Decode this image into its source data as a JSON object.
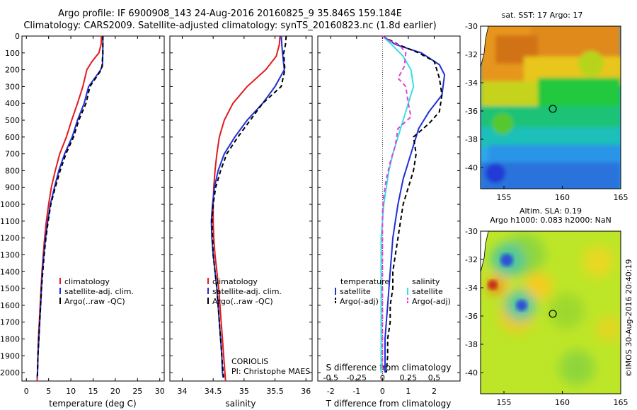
{
  "title": {
    "line1": "Argo profile: IF 6900908_143 24-Aug-2016 20160825_9 35.846S 159.184E",
    "line2": "Climatology: CARS2009. Satellite-adjusted climatology: synTS_20160823.nc (1.8d earlier)"
  },
  "colors": {
    "climatology": "#e41a1c",
    "satellite": "#1f2fd6",
    "argo": "#000000",
    "sat_salinity": "#34e0e6",
    "argo_salinity": "#e63fd8"
  },
  "credits": {
    "centre": "CORIOLIS",
    "pi": "PI: Christophe MAES",
    "imos": "©IMOS 30-Aug-2016 20:40:19"
  },
  "chart_data": [
    {
      "type": "line",
      "xlabel": "temperature (deg C)",
      "xlim": [
        -1,
        31
      ],
      "xticks": [
        0,
        5,
        10,
        15,
        20,
        25,
        30
      ],
      "ylim": [
        2050,
        0
      ],
      "yticks": [
        0,
        100,
        200,
        300,
        400,
        500,
        600,
        700,
        800,
        900,
        1000,
        1100,
        1200,
        1300,
        1400,
        1500,
        1600,
        1700,
        1800,
        1900,
        2000
      ],
      "legend": [
        "climatology",
        "satellite-adj. clim.",
        "Argo(..raw -QC)"
      ],
      "legend_position": "bottom-right",
      "series": [
        {
          "name": "climatology",
          "points": [
            [
              16.9,
              0
            ],
            [
              16.8,
              50
            ],
            [
              16.3,
              100
            ],
            [
              14.8,
              150
            ],
            [
              13.6,
              200
            ],
            [
              12.7,
              300
            ],
            [
              11.5,
              400
            ],
            [
              10.2,
              500
            ],
            [
              9.0,
              600
            ],
            [
              7.5,
              700
            ],
            [
              6.5,
              800
            ],
            [
              5.6,
              900
            ],
            [
              5.0,
              1000
            ],
            [
              4.5,
              1100
            ],
            [
              4.1,
              1200
            ],
            [
              3.8,
              1300
            ],
            [
              3.5,
              1400
            ],
            [
              3.3,
              1500
            ],
            [
              3.1,
              1600
            ],
            [
              2.9,
              1700
            ],
            [
              2.7,
              1800
            ],
            [
              2.6,
              1900
            ],
            [
              2.5,
              2000
            ],
            [
              2.4,
              2050
            ]
          ]
        },
        {
          "name": "satellite-adj. clim.",
          "points": [
            [
              17.2,
              0
            ],
            [
              17.2,
              100
            ],
            [
              17.1,
              180
            ],
            [
              16.5,
              210
            ],
            [
              14.0,
              300
            ],
            [
              13.0,
              400
            ],
            [
              11.5,
              500
            ],
            [
              10.3,
              600
            ],
            [
              8.6,
              700
            ],
            [
              7.3,
              800
            ],
            [
              6.3,
              900
            ],
            [
              5.4,
              1000
            ],
            [
              4.8,
              1100
            ],
            [
              4.3,
              1200
            ],
            [
              3.9,
              1300
            ],
            [
              3.6,
              1400
            ],
            [
              3.4,
              1500
            ],
            [
              3.2,
              1600
            ],
            [
              3.0,
              1700
            ],
            [
              2.8,
              1800
            ],
            [
              2.6,
              1900
            ],
            [
              2.5,
              2000
            ],
            [
              2.4,
              2030
            ]
          ]
        },
        {
          "name": "Argo(..raw -QC)",
          "points": [
            [
              17.2,
              0
            ],
            [
              17.2,
              100
            ],
            [
              17.0,
              180
            ],
            [
              16.6,
              210
            ],
            [
              14.3,
              300
            ],
            [
              13.4,
              400
            ],
            [
              11.8,
              500
            ],
            [
              10.6,
              600
            ],
            [
              8.9,
              700
            ],
            [
              7.6,
              800
            ],
            [
              6.5,
              900
            ],
            [
              5.5,
              1000
            ],
            [
              4.9,
              1100
            ],
            [
              4.4,
              1200
            ],
            [
              4.0,
              1300
            ],
            [
              3.7,
              1400
            ],
            [
              3.4,
              1500
            ],
            [
              3.2,
              1600
            ],
            [
              3.0,
              1700
            ],
            [
              2.8,
              1800
            ],
            [
              2.6,
              1900
            ],
            [
              2.5,
              2000
            ],
            [
              2.5,
              2030
            ]
          ]
        }
      ]
    },
    {
      "type": "line",
      "xlabel": "salinity",
      "xlim": [
        33.8,
        36.1
      ],
      "xticks": [
        34,
        34.5,
        35,
        35.5,
        36
      ],
      "ylim": [
        2050,
        0
      ],
      "legend": [
        "climatology",
        "satellite-adj. clim.",
        "Argo(..raw -QC)"
      ],
      "legend_position": "bottom-right",
      "series": [
        {
          "name": "climatology",
          "points": [
            [
              35.58,
              0
            ],
            [
              35.57,
              50
            ],
            [
              35.52,
              120
            ],
            [
              35.35,
              200
            ],
            [
              35.05,
              300
            ],
            [
              34.82,
              400
            ],
            [
              34.68,
              500
            ],
            [
              34.6,
              600
            ],
            [
              34.56,
              700
            ],
            [
              34.53,
              800
            ],
            [
              34.51,
              900
            ],
            [
              34.5,
              1000
            ],
            [
              34.5,
              1100
            ],
            [
              34.51,
              1200
            ],
            [
              34.53,
              1300
            ],
            [
              34.56,
              1400
            ],
            [
              34.59,
              1500
            ],
            [
              34.61,
              1600
            ],
            [
              34.63,
              1700
            ],
            [
              34.65,
              1800
            ],
            [
              34.67,
              1900
            ],
            [
              34.69,
              2000
            ],
            [
              34.7,
              2050
            ]
          ]
        },
        {
          "name": "satellite-adj. clim.",
          "points": [
            [
              35.6,
              0
            ],
            [
              35.62,
              100
            ],
            [
              35.65,
              200
            ],
            [
              35.5,
              300
            ],
            [
              35.3,
              400
            ],
            [
              35.05,
              500
            ],
            [
              34.85,
              600
            ],
            [
              34.68,
              700
            ],
            [
              34.58,
              800
            ],
            [
              34.52,
              900
            ],
            [
              34.49,
              1000
            ],
            [
              34.47,
              1100
            ],
            [
              34.48,
              1200
            ],
            [
              34.5,
              1300
            ],
            [
              34.53,
              1400
            ],
            [
              34.56,
              1500
            ],
            [
              34.58,
              1600
            ],
            [
              34.6,
              1700
            ],
            [
              34.62,
              1800
            ],
            [
              34.64,
              1900
            ],
            [
              34.65,
              2000
            ],
            [
              34.66,
              2030
            ]
          ]
        },
        {
          "name": "Argo(..raw -QC)",
          "points": [
            [
              35.68,
              0
            ],
            [
              35.67,
              50
            ],
            [
              35.64,
              100
            ],
            [
              35.66,
              200
            ],
            [
              35.6,
              300
            ],
            [
              35.3,
              400
            ],
            [
              35.1,
              500
            ],
            [
              34.9,
              600
            ],
            [
              34.72,
              700
            ],
            [
              34.62,
              800
            ],
            [
              34.54,
              900
            ],
            [
              34.5,
              1000
            ],
            [
              34.48,
              1100
            ],
            [
              34.49,
              1200
            ],
            [
              34.5,
              1300
            ],
            [
              34.53,
              1400
            ],
            [
              34.56,
              1500
            ],
            [
              34.58,
              1600
            ],
            [
              34.6,
              1700
            ],
            [
              34.62,
              1800
            ],
            [
              34.64,
              1900
            ],
            [
              34.66,
              2000
            ],
            [
              34.67,
              2030
            ]
          ]
        }
      ]
    },
    {
      "type": "line",
      "xlabel": "T difference from climatology",
      "x2label": "S difference from climatology",
      "xlim": [
        -2.5,
        3.0
      ],
      "xticks": [
        -2,
        -1,
        0,
        1,
        2
      ],
      "x2ticks": [
        "-0.5",
        "-0.25",
        "0",
        "0.25",
        "0.5"
      ],
      "ylim": [
        2050,
        0
      ],
      "legend_titles": [
        "temperature",
        "salinity"
      ],
      "legend": [
        "satellite",
        "Argo(-adj)",
        "satellite",
        "Argo(-adj)"
      ],
      "legend_position": "bottom",
      "series": [
        {
          "name": "temperature satellite",
          "points": [
            [
              0,
              0
            ],
            [
              0.5,
              50
            ],
            [
              1.5,
              100
            ],
            [
              2.2,
              170
            ],
            [
              2.4,
              230
            ],
            [
              2.3,
              350
            ],
            [
              1.8,
              450
            ],
            [
              1.4,
              550
            ],
            [
              1.2,
              650
            ],
            [
              1.0,
              750
            ],
            [
              0.8,
              850
            ],
            [
              0.6,
              1000
            ],
            [
              0.5,
              1100
            ],
            [
              0.4,
              1200
            ],
            [
              0.35,
              1300
            ],
            [
              0.3,
              1400
            ],
            [
              0.25,
              1500
            ],
            [
              0.2,
              1600
            ],
            [
              0.15,
              1700
            ],
            [
              0.1,
              1800
            ],
            [
              0.1,
              1900
            ],
            [
              0.1,
              2000
            ]
          ]
        },
        {
          "name": "temperature Argo(-adj)",
          "points": [
            [
              0,
              0
            ],
            [
              0.6,
              50
            ],
            [
              1.4,
              100
            ],
            [
              2.0,
              150
            ],
            [
              2.2,
              250
            ],
            [
              2.3,
              350
            ],
            [
              2.2,
              450
            ],
            [
              1.8,
              520
            ],
            [
              1.2,
              600
            ],
            [
              1.3,
              700
            ],
            [
              1.2,
              800
            ],
            [
              1.0,
              900
            ],
            [
              0.8,
              1000
            ],
            [
              0.7,
              1100
            ],
            [
              0.6,
              1200
            ],
            [
              0.5,
              1300
            ],
            [
              0.4,
              1400
            ],
            [
              0.4,
              1500
            ],
            [
              0.3,
              1600
            ],
            [
              0.3,
              1700
            ],
            [
              0.2,
              1800
            ],
            [
              0.2,
              1900
            ],
            [
              0.15,
              2000
            ]
          ]
        },
        {
          "name": "salinity satellite",
          "points": [
            [
              0,
              0
            ],
            [
              0.35,
              50
            ],
            [
              0.8,
              120
            ],
            [
              1.1,
              200
            ],
            [
              1.2,
              300
            ],
            [
              1.0,
              400
            ],
            [
              0.8,
              500
            ],
            [
              0.6,
              600
            ],
            [
              0.4,
              700
            ],
            [
              0.25,
              800
            ],
            [
              0.15,
              900
            ],
            [
              0.05,
              1000
            ],
            [
              0,
              1100
            ],
            [
              -0.05,
              1200
            ],
            [
              -0.05,
              1300
            ],
            [
              -0.05,
              1500
            ],
            [
              -0.05,
              1700
            ],
            [
              -0.05,
              1900
            ],
            [
              -0.05,
              2000
            ]
          ]
        },
        {
          "name": "salinity Argo(-adj)",
          "points": [
            [
              0,
              0
            ],
            [
              0.3,
              30
            ],
            [
              0.7,
              60
            ],
            [
              0.9,
              100
            ],
            [
              0.85,
              180
            ],
            [
              0.6,
              250
            ],
            [
              0.9,
              300
            ],
            [
              1.0,
              400
            ],
            [
              1.1,
              480
            ],
            [
              0.6,
              550
            ],
            [
              0.5,
              650
            ],
            [
              0.3,
              750
            ],
            [
              0.15,
              850
            ],
            [
              0.05,
              950
            ],
            [
              0,
              1050
            ],
            [
              0,
              1200
            ],
            [
              0,
              1400
            ],
            [
              0,
              1600
            ],
            [
              0,
              1800
            ],
            [
              0,
              2000
            ]
          ]
        }
      ]
    },
    {
      "type": "heatmap",
      "title": "sat. SST: 17  Argo: 17",
      "xlim": [
        153,
        165
      ],
      "ylim": [
        -41.5,
        -30
      ],
      "xticks": [
        155,
        160,
        165
      ],
      "yticks": [
        -30,
        -32,
        -34,
        -36,
        -38,
        -40
      ],
      "marker": {
        "lon": 159.184,
        "lat": -35.846
      }
    },
    {
      "type": "heatmap",
      "title": "Altim. SLA: 0.19",
      "subtitle": "Argo h1000: 0.083 h2000: NaN",
      "xlim": [
        153,
        165
      ],
      "ylim": [
        -41.5,
        -30
      ],
      "xticks": [
        155,
        160,
        165
      ],
      "yticks": [
        -30,
        -32,
        -34,
        -36,
        -38,
        -40
      ],
      "marker": {
        "lon": 159.184,
        "lat": -35.846
      }
    }
  ]
}
